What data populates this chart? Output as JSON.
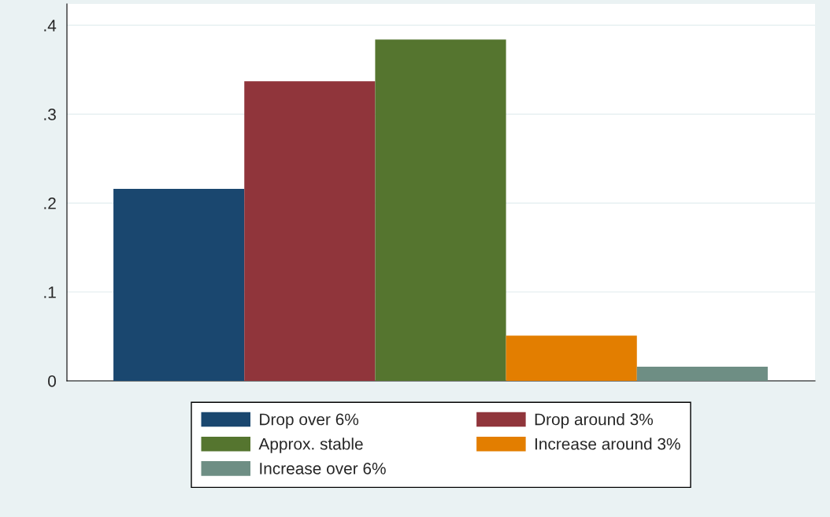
{
  "chart_data": {
    "type": "bar",
    "categories": [
      null
    ],
    "series": [
      {
        "name": "Drop over 6%",
        "color": "#1a476f",
        "values": [
          0.216
        ]
      },
      {
        "name": "Drop around 3%",
        "color": "#90353b",
        "values": [
          0.337
        ]
      },
      {
        "name": "Approx. stable",
        "color": "#55752f",
        "values": [
          0.384
        ]
      },
      {
        "name": "Increase around 3%",
        "color": "#e37e00",
        "values": [
          0.051
        ]
      },
      {
        "name": "Increase over 6%",
        "color": "#6e8e84",
        "values": [
          0.016
        ]
      }
    ],
    "ylim": [
      0,
      0.424
    ],
    "yticks": [
      {
        "value": 0,
        "label": "0"
      },
      {
        "value": 0.1,
        "label": ".1"
      },
      {
        "value": 0.2,
        "label": ".2"
      },
      {
        "value": 0.3,
        "label": ".3"
      },
      {
        "value": 0.4,
        "label": ".4"
      }
    ],
    "grid": "y",
    "legend": "bottom",
    "tick_labels": "y"
  }
}
